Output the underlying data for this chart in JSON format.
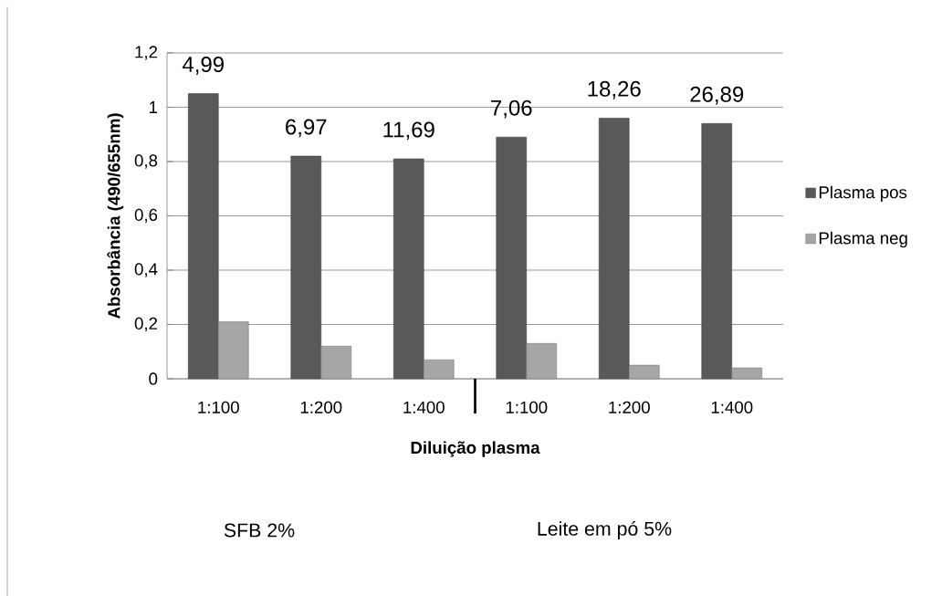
{
  "chart_data": {
    "type": "bar",
    "xlabel": "Diluição plasma",
    "ylabel": "Absorbância (490/655nm)",
    "categories": [
      "1:100",
      "1:200",
      "1:400",
      "1:100",
      "1:200",
      "1:400"
    ],
    "series": [
      {
        "name": "Plasma pos",
        "color": "#595959",
        "values": [
          1.05,
          0.82,
          0.81,
          0.89,
          0.96,
          0.94
        ]
      },
      {
        "name": "Plasma neg",
        "color": "#a6a6a6",
        "values": [
          0.21,
          0.12,
          0.07,
          0.13,
          0.05,
          0.04
        ]
      }
    ],
    "ylim": [
      0,
      1.2
    ],
    "yticks": [
      {
        "value": 0,
        "label": "0"
      },
      {
        "value": 0.2,
        "label": "0,2"
      },
      {
        "value": 0.4,
        "label": "0,4"
      },
      {
        "value": 0.6,
        "label": "0,6"
      },
      {
        "value": 0.8,
        "label": "0,8"
      },
      {
        "value": 1,
        "label": "1"
      },
      {
        "value": 1.2,
        "label": "1,2"
      }
    ],
    "grid": "y",
    "legend": "right",
    "annotations": [
      "4,99",
      "6,97",
      "11,69",
      "7,06",
      "18,26",
      "26,89",
      "SFB 2%",
      "Leite em pó 5%"
    ]
  }
}
